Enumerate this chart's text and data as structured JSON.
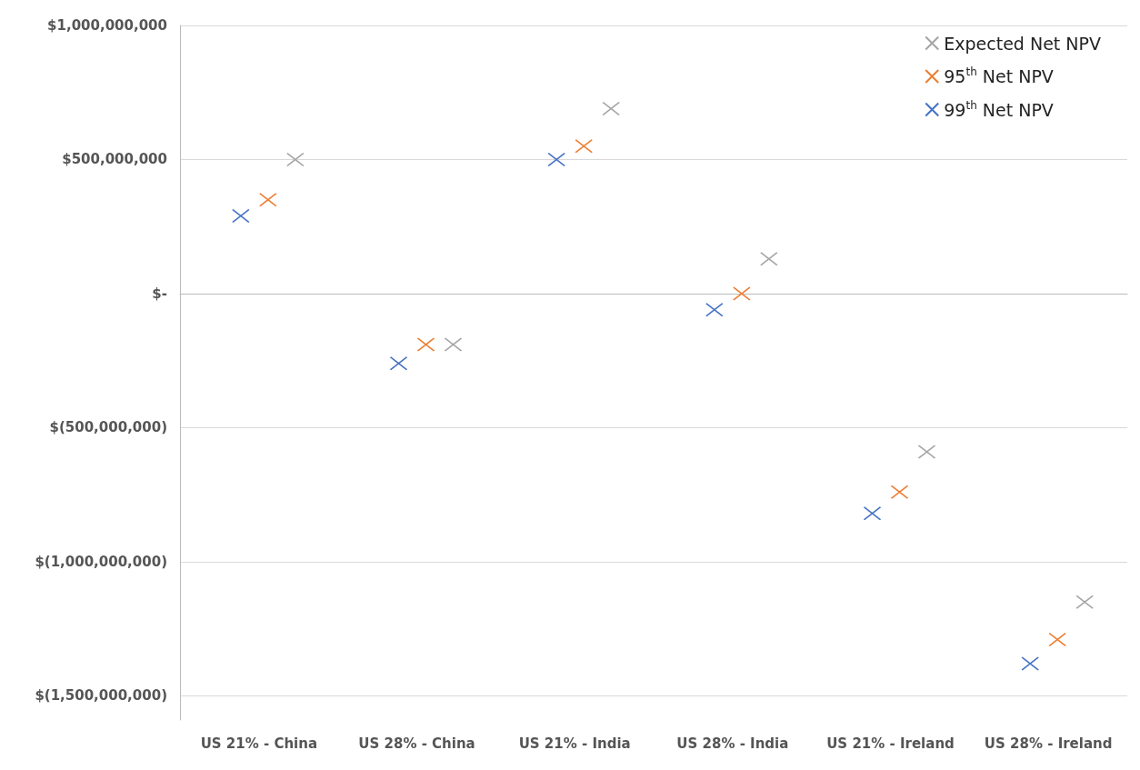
{
  "chart_data": {
    "type": "scatter",
    "categories": [
      "US 21% - China",
      "US 28% - China",
      "US 21% - India",
      "US 28% - India",
      "US 21% - Ireland",
      "US 28% - Ireland"
    ],
    "series": [
      {
        "name": "Expected Net NPV",
        "color": "#a5a5a5",
        "values": [
          500000000,
          -190000000,
          690000000,
          130000000,
          -590000000,
          -1150000000
        ]
      },
      {
        "name": "95$^{th}$ Net NPV",
        "color": "#ed7d31",
        "values": [
          350000000,
          -190000000,
          550000000,
          0,
          -740000000,
          -1290000000
        ]
      },
      {
        "name": "99$^{th}$ Net NPV",
        "color": "#4472c4",
        "values": [
          290000000,
          -260000000,
          500000000,
          -60000000,
          -820000000,
          -1380000000
        ]
      }
    ],
    "ylim": [
      -1590000000,
      1000000000
    ],
    "yticks": [
      {
        "value": -1500000000,
        "label": "$(1,500,000,000)"
      },
      {
        "value": -1000000000,
        "label": "$(1,000,000,000)"
      },
      {
        "value": -500000000,
        "label": "$(500,000,000)"
      },
      {
        "value": 0,
        "label": "$-"
      },
      {
        "value": 500000000,
        "label": "$500,000,000"
      },
      {
        "value": 1000000000,
        "label": "$1,000,000,000"
      }
    ],
    "grid": "y",
    "legend": "top right",
    "marker": "cross"
  }
}
